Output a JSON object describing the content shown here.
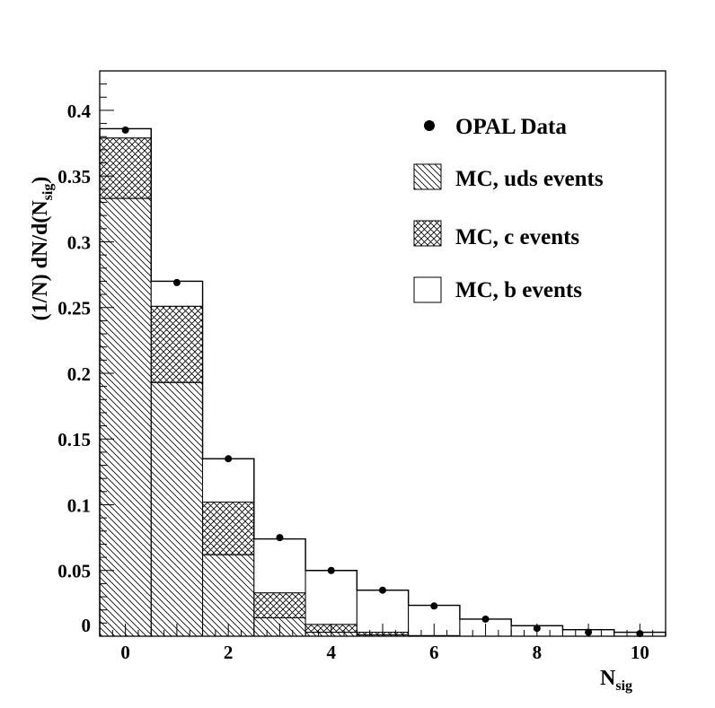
{
  "chart_data": {
    "type": "bar",
    "subtype": "stacked-histogram",
    "title": "",
    "xlabel": "N",
    "xlabel_sub": "sig",
    "ylabel_prefix": "(1/N) dN/d(N",
    "ylabel_sub": "sig",
    "ylabel_suffix": ")",
    "xlim": [
      -0.5,
      10.5
    ],
    "ylim": [
      0,
      0.43
    ],
    "x_ticks": [
      0,
      2,
      4,
      6,
      8,
      10
    ],
    "x_tick_labels": [
      "0",
      "2",
      "4",
      "6",
      "8",
      "10"
    ],
    "y_ticks": [
      0,
      0.05,
      0.1,
      0.15,
      0.2,
      0.25,
      0.3,
      0.35,
      0.4
    ],
    "y_tick_labels": [
      "0",
      "0.05",
      "0.1",
      "0.15",
      "0.2",
      "0.25",
      "0.3",
      "0.35",
      "0.4"
    ],
    "bins": [
      0,
      1,
      2,
      3,
      4,
      5,
      6,
      7,
      8,
      9,
      10
    ],
    "series": [
      {
        "name": "MC, uds events",
        "pattern": "hatch",
        "values": [
          0.333,
          0.193,
          0.062,
          0.014,
          0.003,
          0.001,
          0.0,
          0.0,
          0.0,
          0.0,
          0.0
        ]
      },
      {
        "name": "MC, c events",
        "pattern": "crosshatch",
        "values": [
          0.046,
          0.058,
          0.04,
          0.019,
          0.006,
          0.002,
          0.0005,
          0.0,
          0.0,
          0.0,
          0.0
        ]
      },
      {
        "name": "MC, b events",
        "pattern": "open",
        "values": [
          0.007,
          0.019,
          0.033,
          0.041,
          0.041,
          0.032,
          0.023,
          0.013,
          0.008,
          0.005,
          0.003
        ]
      }
    ],
    "data_points": {
      "name": "OPAL Data",
      "x": [
        0,
        1,
        2,
        3,
        4,
        5,
        6,
        7,
        8,
        9,
        10
      ],
      "y": [
        0.385,
        0.269,
        0.135,
        0.075,
        0.05,
        0.035,
        0.023,
        0.013,
        0.006,
        0.003,
        0.002
      ]
    },
    "legend": {
      "placement": "top-right",
      "entries": [
        {
          "label": "OPAL Data",
          "marker": "dot"
        },
        {
          "label": "MC, uds events",
          "marker": "hatch"
        },
        {
          "label": "MC, c events",
          "marker": "crosshatch"
        },
        {
          "label": "MC, b events",
          "marker": "open"
        }
      ]
    }
  }
}
